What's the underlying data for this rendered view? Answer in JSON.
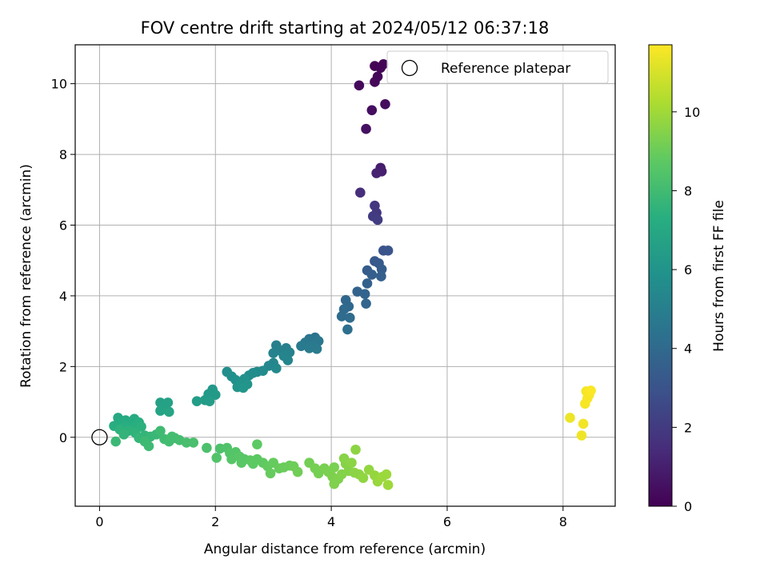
{
  "chart_data": {
    "type": "scatter",
    "title": "FOV centre drift starting at 2024/05/12 06:37:18",
    "xlabel": "Angular distance from reference (arcmin)",
    "ylabel": "Rotation from reference (arcmin)",
    "xlim": [
      -0.42,
      8.9
    ],
    "ylim": [
      -1.95,
      11.1
    ],
    "xticks": [
      0,
      2,
      4,
      6,
      8
    ],
    "yticks": [
      0,
      2,
      4,
      6,
      8,
      10
    ],
    "grid": true,
    "legend": {
      "placement": "top-right",
      "entries": [
        "Reference platepar"
      ]
    },
    "reference_point": {
      "x": 0,
      "y": 0,
      "label": "Reference platepar"
    },
    "colorbar": {
      "label": "Hours from first FF file",
      "colormap": "viridis",
      "range": [
        0,
        11.7
      ],
      "ticks": [
        0,
        2,
        4,
        6,
        8,
        10
      ]
    },
    "series": [
      {
        "color_by": "hours",
        "points": [
          {
            "x": 4.75,
            "y": 10.5,
            "c": 0.05
          },
          {
            "x": 4.85,
            "y": 10.45,
            "c": 0.1
          },
          {
            "x": 4.9,
            "y": 10.55,
            "c": 0.12
          },
          {
            "x": 4.8,
            "y": 10.2,
            "c": 0.15
          },
          {
            "x": 4.75,
            "y": 10.05,
            "c": 0.2
          },
          {
            "x": 4.48,
            "y": 9.95,
            "c": 0.25
          },
          {
            "x": 4.93,
            "y": 9.42,
            "c": 0.35
          },
          {
            "x": 4.7,
            "y": 9.25,
            "c": 0.4
          },
          {
            "x": 4.6,
            "y": 8.72,
            "c": 0.5
          },
          {
            "x": 4.85,
            "y": 7.62,
            "c": 0.9
          },
          {
            "x": 4.87,
            "y": 7.52,
            "c": 1.0
          },
          {
            "x": 4.78,
            "y": 7.47,
            "c": 1.1
          },
          {
            "x": 4.5,
            "y": 6.92,
            "c": 1.5
          },
          {
            "x": 4.75,
            "y": 6.55,
            "c": 1.8
          },
          {
            "x": 4.78,
            "y": 6.35,
            "c": 1.9
          },
          {
            "x": 4.72,
            "y": 6.25,
            "c": 2.0
          },
          {
            "x": 4.8,
            "y": 6.15,
            "c": 2.1
          },
          {
            "x": 4.9,
            "y": 5.28,
            "c": 3.0
          },
          {
            "x": 4.98,
            "y": 5.28,
            "c": 3.05
          },
          {
            "x": 4.75,
            "y": 4.98,
            "c": 3.2
          },
          {
            "x": 4.82,
            "y": 4.92,
            "c": 3.3
          },
          {
            "x": 4.62,
            "y": 4.72,
            "c": 3.4
          },
          {
            "x": 4.87,
            "y": 4.75,
            "c": 3.4
          },
          {
            "x": 4.7,
            "y": 4.6,
            "c": 3.5
          },
          {
            "x": 4.86,
            "y": 4.55,
            "c": 3.5
          },
          {
            "x": 4.62,
            "y": 4.35,
            "c": 3.6
          },
          {
            "x": 4.45,
            "y": 4.12,
            "c": 3.7
          },
          {
            "x": 4.58,
            "y": 4.05,
            "c": 3.75
          },
          {
            "x": 4.6,
            "y": 3.78,
            "c": 3.8
          },
          {
            "x": 4.25,
            "y": 3.88,
            "c": 3.9
          },
          {
            "x": 4.3,
            "y": 3.7,
            "c": 3.95
          },
          {
            "x": 4.22,
            "y": 3.62,
            "c": 4.0
          },
          {
            "x": 4.18,
            "y": 3.42,
            "c": 4.05
          },
          {
            "x": 4.32,
            "y": 3.38,
            "c": 4.1
          },
          {
            "x": 4.28,
            "y": 3.05,
            "c": 4.2
          },
          {
            "x": 3.72,
            "y": 2.82,
            "c": 4.5
          },
          {
            "x": 3.62,
            "y": 2.78,
            "c": 4.55
          },
          {
            "x": 3.78,
            "y": 2.72,
            "c": 4.6
          },
          {
            "x": 3.55,
            "y": 2.68,
            "c": 4.65
          },
          {
            "x": 3.68,
            "y": 2.6,
            "c": 4.7
          },
          {
            "x": 3.48,
            "y": 2.58,
            "c": 4.75
          },
          {
            "x": 3.75,
            "y": 2.5,
            "c": 4.8
          },
          {
            "x": 3.62,
            "y": 2.52,
            "c": 4.8
          },
          {
            "x": 3.05,
            "y": 2.6,
            "c": 5.0
          },
          {
            "x": 3.22,
            "y": 2.52,
            "c": 5.05
          },
          {
            "x": 3.12,
            "y": 2.45,
            "c": 5.1
          },
          {
            "x": 3.28,
            "y": 2.4,
            "c": 5.15
          },
          {
            "x": 3.0,
            "y": 2.38,
            "c": 5.2
          },
          {
            "x": 3.18,
            "y": 2.3,
            "c": 5.25
          },
          {
            "x": 3.25,
            "y": 2.18,
            "c": 5.3
          },
          {
            "x": 3.0,
            "y": 2.1,
            "c": 5.35
          },
          {
            "x": 2.92,
            "y": 2.02,
            "c": 5.4
          },
          {
            "x": 3.05,
            "y": 1.95,
            "c": 5.45
          },
          {
            "x": 2.72,
            "y": 1.85,
            "c": 5.5
          },
          {
            "x": 2.82,
            "y": 1.88,
            "c": 5.55
          },
          {
            "x": 2.65,
            "y": 1.82,
            "c": 5.6
          },
          {
            "x": 2.58,
            "y": 1.75,
            "c": 5.65
          },
          {
            "x": 2.2,
            "y": 1.85,
            "c": 5.75
          },
          {
            "x": 2.28,
            "y": 1.72,
            "c": 5.8
          },
          {
            "x": 2.35,
            "y": 1.62,
            "c": 5.85
          },
          {
            "x": 2.5,
            "y": 1.65,
            "c": 5.9
          },
          {
            "x": 2.42,
            "y": 1.55,
            "c": 5.95
          },
          {
            "x": 2.55,
            "y": 1.5,
            "c": 6.0
          },
          {
            "x": 2.38,
            "y": 1.42,
            "c": 6.05
          },
          {
            "x": 2.48,
            "y": 1.4,
            "c": 6.1
          },
          {
            "x": 1.95,
            "y": 1.35,
            "c": 6.2
          },
          {
            "x": 1.88,
            "y": 1.22,
            "c": 6.25
          },
          {
            "x": 2.0,
            "y": 1.2,
            "c": 6.3
          },
          {
            "x": 1.82,
            "y": 1.05,
            "c": 6.35
          },
          {
            "x": 1.9,
            "y": 1.02,
            "c": 6.4
          },
          {
            "x": 1.68,
            "y": 1.02,
            "c": 6.45
          },
          {
            "x": 1.05,
            "y": 0.98,
            "c": 6.6
          },
          {
            "x": 1.18,
            "y": 0.98,
            "c": 6.65
          },
          {
            "x": 1.1,
            "y": 0.85,
            "c": 6.7
          },
          {
            "x": 1.05,
            "y": 0.75,
            "c": 6.75
          },
          {
            "x": 1.2,
            "y": 0.72,
            "c": 6.8
          },
          {
            "x": 0.32,
            "y": 0.55,
            "c": 7.0
          },
          {
            "x": 0.45,
            "y": 0.48,
            "c": 7.05
          },
          {
            "x": 0.6,
            "y": 0.52,
            "c": 7.1
          },
          {
            "x": 0.38,
            "y": 0.42,
            "c": 7.15
          },
          {
            "x": 0.52,
            "y": 0.38,
            "c": 7.2
          },
          {
            "x": 0.25,
            "y": 0.32,
            "c": 7.25
          },
          {
            "x": 0.68,
            "y": 0.42,
            "c": 7.3
          },
          {
            "x": 0.45,
            "y": 0.3,
            "c": 7.3
          },
          {
            "x": 0.6,
            "y": 0.28,
            "c": 7.35
          },
          {
            "x": 0.72,
            "y": 0.3,
            "c": 7.4
          },
          {
            "x": 0.35,
            "y": 0.22,
            "c": 7.45
          },
          {
            "x": 0.5,
            "y": 0.18,
            "c": 7.5
          },
          {
            "x": 0.62,
            "y": 0.12,
            "c": 7.55
          },
          {
            "x": 0.42,
            "y": 0.08,
            "c": 7.6
          },
          {
            "x": 0.78,
            "y": 0.05,
            "c": 7.65
          },
          {
            "x": 0.68,
            "y": -0.02,
            "c": 7.7
          },
          {
            "x": 0.88,
            "y": 0.02,
            "c": 7.75
          },
          {
            "x": 0.98,
            "y": 0.08,
            "c": 7.8
          },
          {
            "x": 0.28,
            "y": -0.12,
            "c": 7.85
          },
          {
            "x": 0.78,
            "y": -0.12,
            "c": 7.9
          },
          {
            "x": 0.85,
            "y": -0.25,
            "c": 7.95
          },
          {
            "x": 1.05,
            "y": 0.18,
            "c": 7.95
          },
          {
            "x": 1.12,
            "y": -0.05,
            "c": 8.0
          },
          {
            "x": 1.2,
            "y": -0.12,
            "c": 8.05
          },
          {
            "x": 1.3,
            "y": -0.02,
            "c": 8.1
          },
          {
            "x": 1.38,
            "y": -0.08,
            "c": 8.15
          },
          {
            "x": 1.25,
            "y": 0.02,
            "c": 8.1
          },
          {
            "x": 1.5,
            "y": -0.15,
            "c": 8.2
          },
          {
            "x": 1.62,
            "y": -0.15,
            "c": 8.25
          },
          {
            "x": 1.85,
            "y": -0.3,
            "c": 8.3
          },
          {
            "x": 2.08,
            "y": -0.32,
            "c": 8.35
          },
          {
            "x": 2.2,
            "y": -0.3,
            "c": 8.4
          },
          {
            "x": 2.02,
            "y": -0.58,
            "c": 8.45
          },
          {
            "x": 2.25,
            "y": -0.45,
            "c": 8.5
          },
          {
            "x": 2.35,
            "y": -0.42,
            "c": 8.5
          },
          {
            "x": 2.28,
            "y": -0.62,
            "c": 8.55
          },
          {
            "x": 2.42,
            "y": -0.55,
            "c": 8.6
          },
          {
            "x": 2.5,
            "y": -0.62,
            "c": 8.6
          },
          {
            "x": 2.45,
            "y": -0.72,
            "c": 8.65
          },
          {
            "x": 2.6,
            "y": -0.65,
            "c": 8.7
          },
          {
            "x": 2.72,
            "y": -0.62,
            "c": 8.7
          },
          {
            "x": 2.65,
            "y": -0.75,
            "c": 8.75
          },
          {
            "x": 2.72,
            "y": -0.2,
            "c": 8.75
          },
          {
            "x": 2.82,
            "y": -0.72,
            "c": 8.8
          },
          {
            "x": 2.9,
            "y": -0.82,
            "c": 8.85
          },
          {
            "x": 2.95,
            "y": -1.02,
            "c": 8.9
          },
          {
            "x": 3.0,
            "y": -0.72,
            "c": 8.9
          },
          {
            "x": 3.1,
            "y": -0.88,
            "c": 8.95
          },
          {
            "x": 3.18,
            "y": -0.85,
            "c": 9.0
          },
          {
            "x": 3.28,
            "y": -0.8,
            "c": 9.0
          },
          {
            "x": 3.35,
            "y": -0.82,
            "c": 9.05
          },
          {
            "x": 3.42,
            "y": -0.98,
            "c": 9.1
          },
          {
            "x": 3.62,
            "y": -0.72,
            "c": 9.15
          },
          {
            "x": 3.72,
            "y": -0.88,
            "c": 9.2
          },
          {
            "x": 3.78,
            "y": -1.02,
            "c": 9.2
          },
          {
            "x": 3.88,
            "y": -0.88,
            "c": 9.25
          },
          {
            "x": 3.95,
            "y": -0.98,
            "c": 9.3
          },
          {
            "x": 4.05,
            "y": -0.85,
            "c": 9.3
          },
          {
            "x": 4.02,
            "y": -1.12,
            "c": 9.35
          },
          {
            "x": 4.12,
            "y": -1.18,
            "c": 9.4
          },
          {
            "x": 4.05,
            "y": -1.32,
            "c": 9.4
          },
          {
            "x": 4.18,
            "y": -1.05,
            "c": 9.45
          },
          {
            "x": 4.25,
            "y": -0.75,
            "c": 9.5
          },
          {
            "x": 4.3,
            "y": -0.95,
            "c": 9.5
          },
          {
            "x": 4.22,
            "y": -0.6,
            "c": 9.55
          },
          {
            "x": 4.35,
            "y": -0.72,
            "c": 9.6
          },
          {
            "x": 4.4,
            "y": -1.0,
            "c": 9.6
          },
          {
            "x": 4.42,
            "y": -0.35,
            "c": 9.65
          },
          {
            "x": 4.48,
            "y": -1.05,
            "c": 9.65
          },
          {
            "x": 4.55,
            "y": -1.15,
            "c": 9.7
          },
          {
            "x": 4.65,
            "y": -0.92,
            "c": 9.75
          },
          {
            "x": 4.75,
            "y": -1.08,
            "c": 9.8
          },
          {
            "x": 4.8,
            "y": -1.25,
            "c": 9.85
          },
          {
            "x": 4.88,
            "y": -1.12,
            "c": 9.9
          },
          {
            "x": 4.95,
            "y": -1.05,
            "c": 9.9
          },
          {
            "x": 4.98,
            "y": -1.35,
            "c": 9.95
          },
          {
            "x": 8.12,
            "y": 0.55,
            "c": 11.4
          },
          {
            "x": 8.32,
            "y": 0.05,
            "c": 11.45
          },
          {
            "x": 8.35,
            "y": 0.38,
            "c": 11.5
          },
          {
            "x": 8.38,
            "y": 0.95,
            "c": 11.55
          },
          {
            "x": 8.4,
            "y": 1.3,
            "c": 11.55
          },
          {
            "x": 8.45,
            "y": 1.2,
            "c": 11.6
          },
          {
            "x": 8.42,
            "y": 1.1,
            "c": 11.6
          },
          {
            "x": 8.48,
            "y": 1.32,
            "c": 11.65
          }
        ]
      }
    ]
  }
}
